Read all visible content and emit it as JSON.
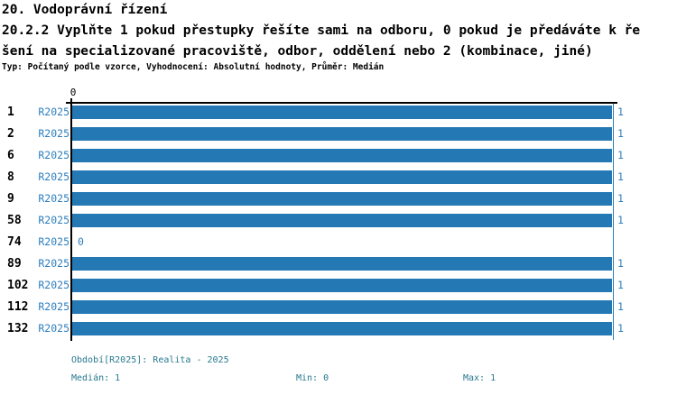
{
  "header": {
    "section_title": "20. Vodoprávní řízení",
    "question_lines": [
      "20.2.2 Vyplňte 1 pokud přestupky řešíte sami na odboru, 0 pokud je předáváte k ře",
      "šení na specializované pracoviště, odbor, oddělení nebo 2 (kombinace, jiné)"
    ],
    "meta": "Typ: Počítaný podle vzorce, Vyhodnocení: Absolutní hodnoty, Průměr: Medián"
  },
  "chart_data": {
    "type": "bar",
    "orientation": "horizontal",
    "title": "20.2.2 Vyplňte 1 pokud přestupky řešíte sami na odboru, 0 pokud je předáváte k řešení na specializované pracoviště, odbor, oddělení nebo 2 (kombinace, jiné)",
    "categories": [
      "1",
      "2",
      "6",
      "8",
      "9",
      "58",
      "74",
      "89",
      "102",
      "112",
      "132"
    ],
    "series": [
      {
        "name": "R2025",
        "values": [
          1,
          1,
          1,
          1,
          1,
          1,
          0,
          1,
          1,
          1,
          1
        ]
      }
    ],
    "xlim": [
      0,
      1
    ],
    "x_tick_labels": [
      "0"
    ],
    "grid": "max-value gridline at 1",
    "legend_position": "none",
    "bar_color": "#2478B4",
    "label_color": "#2E7FBE"
  },
  "footer": {
    "period": "Období[R2025]: Realita - 2025",
    "median": "Medián: 1",
    "min": "Min: 0",
    "max": "Max: 1"
  },
  "colors": {
    "bar": "#2478B4",
    "series_label": "#2E7FBE",
    "footer_text": "#27798F",
    "axis": "#000000"
  }
}
